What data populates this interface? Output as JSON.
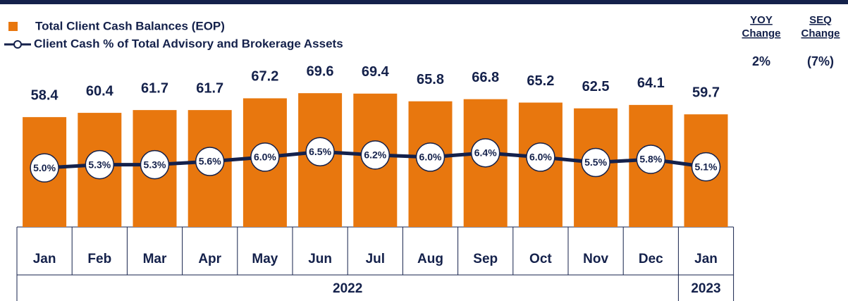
{
  "chart_data": {
    "type": "bar-line",
    "categories": [
      "Jan",
      "Feb",
      "Mar",
      "Apr",
      "May",
      "Jun",
      "Jul",
      "Aug",
      "Sep",
      "Oct",
      "Nov",
      "Dec",
      "Jan"
    ],
    "groups": [
      {
        "label": "2022",
        "count": 12
      },
      {
        "label": "2023",
        "count": 1
      }
    ],
    "series": [
      {
        "name": "Total Client Cash Balances (EOP)",
        "type": "bar",
        "color": "#e8770e",
        "values": [
          58.4,
          60.4,
          61.7,
          61.7,
          67.2,
          69.6,
          69.4,
          65.8,
          66.8,
          65.2,
          62.5,
          64.1,
          59.7
        ]
      },
      {
        "name": "Client Cash % of Total Advisory and Brokerage Assets",
        "type": "line",
        "axis": "y2",
        "color": "#14214b",
        "values": [
          5.0,
          5.3,
          5.3,
          5.6,
          6.0,
          6.5,
          6.2,
          6.0,
          6.4,
          6.0,
          5.5,
          5.8,
          5.1
        ],
        "value_labels": [
          "5.0%",
          "5.3%",
          "5.3%",
          "5.6%",
          "6.0%",
          "6.5%",
          "6.2%",
          "6.0%",
          "6.4%",
          "6.0%",
          "5.5%",
          "5.8%",
          "5.1%"
        ]
      }
    ],
    "ylim": [
      7,
      100
    ],
    "y2lim": [
      -0.5,
      18
    ],
    "summary": [
      {
        "label_lines": [
          "YOY",
          "Change"
        ],
        "value": "2%"
      },
      {
        "label_lines": [
          "SEQ",
          "Change"
        ],
        "value": "(7%)"
      }
    ]
  }
}
